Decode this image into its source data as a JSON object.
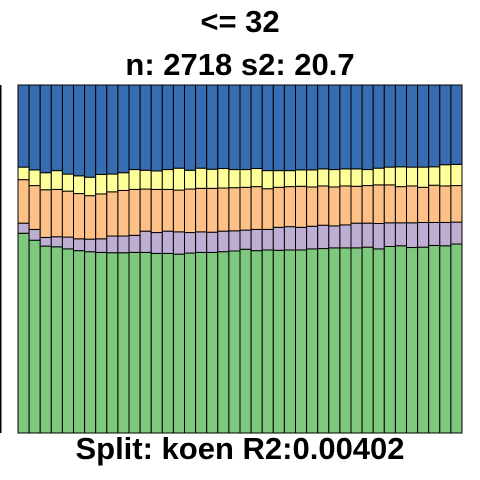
{
  "header": {
    "line1": "<= 32",
    "line2": "n: 2718 s2: 20.7"
  },
  "footer": {
    "text": "Split: koen R2:0.00402"
  },
  "colors": {
    "green": "#7fc97f",
    "purple": "#beaed4",
    "orange": "#fdc086",
    "yellow": "#ffff99",
    "blue": "#386cb0",
    "border": "#000000"
  },
  "chart_data": {
    "type": "bar",
    "stacked": true,
    "normalized": true,
    "bar_count": 40,
    "ylim": [
      0,
      1
    ],
    "series_order_bottom_to_top": [
      "green",
      "purple",
      "orange",
      "yellow",
      "blue"
    ],
    "series": [
      {
        "color": "green",
        "values": [
          0.574,
          0.554,
          0.537,
          0.535,
          0.529,
          0.524,
          0.521,
          0.519,
          0.518,
          0.518,
          0.519,
          0.519,
          0.516,
          0.516,
          0.514,
          0.517,
          0.519,
          0.519,
          0.521,
          0.523,
          0.528,
          0.524,
          0.526,
          0.525,
          0.526,
          0.526,
          0.529,
          0.53,
          0.532,
          0.532,
          0.532,
          0.534,
          0.529,
          0.536,
          0.538,
          0.533,
          0.534,
          0.539,
          0.538,
          0.543
        ]
      },
      {
        "color": "purple",
        "values": [
          0.029,
          0.031,
          0.025,
          0.029,
          0.034,
          0.034,
          0.036,
          0.039,
          0.048,
          0.048,
          0.049,
          0.061,
          0.06,
          0.064,
          0.064,
          0.059,
          0.059,
          0.058,
          0.059,
          0.058,
          0.055,
          0.061,
          0.059,
          0.066,
          0.067,
          0.065,
          0.065,
          0.067,
          0.063,
          0.066,
          0.071,
          0.069,
          0.073,
          0.068,
          0.066,
          0.071,
          0.071,
          0.066,
          0.067,
          0.063
        ]
      },
      {
        "color": "orange",
        "values": [
          0.125,
          0.126,
          0.137,
          0.136,
          0.132,
          0.13,
          0.125,
          0.129,
          0.127,
          0.131,
          0.132,
          0.121,
          0.124,
          0.12,
          0.12,
          0.125,
          0.125,
          0.126,
          0.124,
          0.124,
          0.123,
          0.123,
          0.117,
          0.115,
          0.115,
          0.118,
          0.113,
          0.113,
          0.112,
          0.112,
          0.106,
          0.108,
          0.111,
          0.109,
          0.104,
          0.106,
          0.101,
          0.107,
          0.105,
          0.105
        ]
      },
      {
        "color": "yellow",
        "values": [
          0.036,
          0.045,
          0.049,
          0.054,
          0.049,
          0.051,
          0.053,
          0.056,
          0.051,
          0.051,
          0.057,
          0.054,
          0.053,
          0.057,
          0.063,
          0.054,
          0.058,
          0.055,
          0.056,
          0.052,
          0.051,
          0.052,
          0.052,
          0.048,
          0.046,
          0.047,
          0.049,
          0.049,
          0.05,
          0.049,
          0.05,
          0.046,
          0.048,
          0.051,
          0.057,
          0.054,
          0.058,
          0.053,
          0.061,
          0.061
        ]
      },
      {
        "color": "blue",
        "values": [
          0.236,
          0.244,
          0.252,
          0.246,
          0.256,
          0.261,
          0.265,
          0.257,
          0.256,
          0.252,
          0.243,
          0.245,
          0.247,
          0.243,
          0.239,
          0.245,
          0.239,
          0.242,
          0.24,
          0.243,
          0.243,
          0.24,
          0.246,
          0.246,
          0.246,
          0.244,
          0.244,
          0.241,
          0.243,
          0.241,
          0.241,
          0.243,
          0.239,
          0.236,
          0.235,
          0.236,
          0.236,
          0.235,
          0.229,
          0.228
        ]
      }
    ]
  }
}
